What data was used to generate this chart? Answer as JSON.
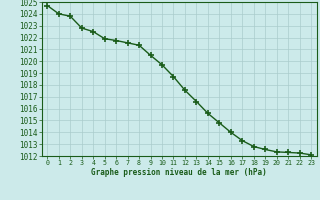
{
  "x": [
    0,
    1,
    2,
    3,
    4,
    5,
    6,
    7,
    8,
    9,
    10,
    11,
    12,
    13,
    14,
    15,
    16,
    17,
    18,
    19,
    20,
    21,
    22,
    23
  ],
  "y": [
    1024.7,
    1024.0,
    1023.8,
    1022.8,
    1022.5,
    1021.9,
    1021.75,
    1021.55,
    1021.35,
    1020.5,
    1019.7,
    1018.7,
    1017.55,
    1016.6,
    1015.6,
    1014.8,
    1014.0,
    1013.3,
    1012.8,
    1012.55,
    1012.35,
    1012.3,
    1012.25,
    1012.1
  ],
  "xlabel": "Graphe pression niveau de la mer (hPa)",
  "line_color": "#1a5c1a",
  "marker": "+",
  "marker_size": 5,
  "marker_linewidth": 1.2,
  "linewidth": 1.0,
  "background_color": "#cceaea",
  "grid_color": "#aacccc",
  "ylim_min": 1012,
  "ylim_max": 1025,
  "xlim_min": -0.5,
  "xlim_max": 23.5,
  "ytick_fontsize": 5.5,
  "xtick_fontsize": 4.8,
  "xlabel_fontsize": 5.5,
  "xtick_labels": [
    "0",
    "1",
    "2",
    "3",
    "4",
    "5",
    "6",
    "7",
    "8",
    "9",
    "10",
    "11",
    "12",
    "13",
    "14",
    "15",
    "16",
    "17",
    "18",
    "19",
    "20",
    "21",
    "22",
    "23"
  ]
}
